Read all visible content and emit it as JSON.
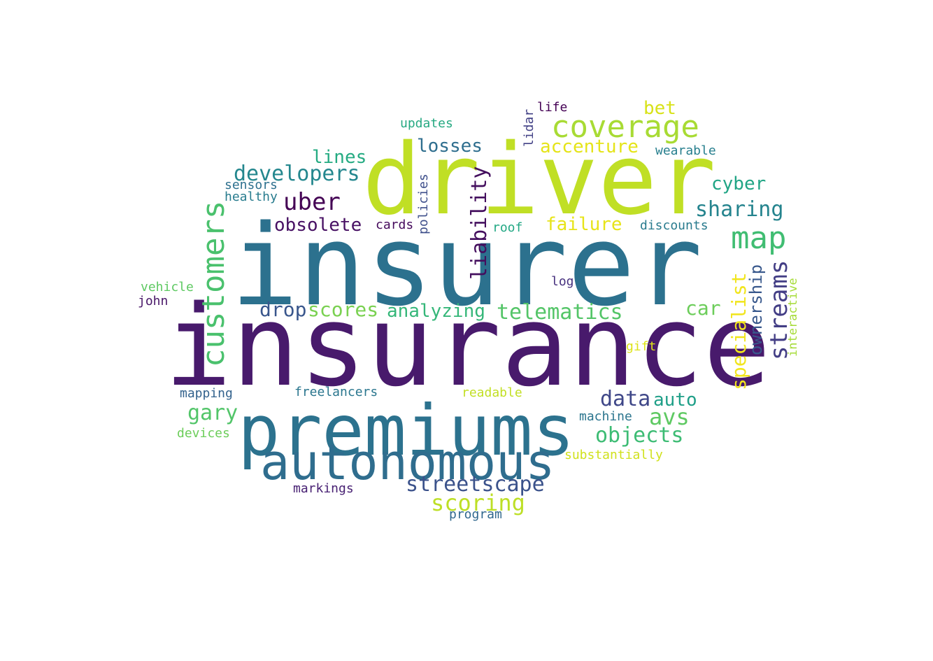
{
  "words": [
    {
      "text": "insurance",
      "color": "#481a6c"
    },
    {
      "text": "insurer",
      "color": "#2c718e"
    },
    {
      "text": "driver",
      "color": "#c0df25"
    },
    {
      "text": "premiums",
      "color": "#2c728e"
    },
    {
      "text": "autonomous",
      "color": "#2f6d8e"
    },
    {
      "text": "customers",
      "color": "#4ac16d"
    },
    {
      "text": "coverage",
      "color": "#a8db34"
    },
    {
      "text": "map",
      "color": "#40bd72"
    },
    {
      "text": "streams",
      "color": "#433e85"
    },
    {
      "text": "developers",
      "color": "#24878e"
    },
    {
      "text": "uber",
      "color": "#440154"
    },
    {
      "text": "obsolete",
      "color": "#471063"
    },
    {
      "text": "liability",
      "color": "#440f5e"
    },
    {
      "text": "losses",
      "color": "#2e6e8e"
    },
    {
      "text": "lines",
      "color": "#25ab82"
    },
    {
      "text": "sharing",
      "color": "#25848e"
    },
    {
      "text": "cyber",
      "color": "#21a585"
    },
    {
      "text": "specialist",
      "color": "#f1e51d"
    },
    {
      "text": "ownership",
      "color": "#38588c"
    },
    {
      "text": "telematics",
      "color": "#54c568"
    },
    {
      "text": "scores",
      "color": "#7ad151"
    },
    {
      "text": "analyzing",
      "color": "#35b779"
    },
    {
      "text": "drop",
      "color": "#39568c"
    },
    {
      "text": "car",
      "color": "#6ccd5a"
    },
    {
      "text": "failure",
      "color": "#e7e419"
    },
    {
      "text": "accenture",
      "color": "#e5e419"
    },
    {
      "text": "bet",
      "color": "#d8e219"
    },
    {
      "text": "data",
      "color": "#3f4788"
    },
    {
      "text": "auto",
      "color": "#1f9f88"
    },
    {
      "text": "avs",
      "color": "#5ec962"
    },
    {
      "text": "objects",
      "color": "#3dbc74"
    },
    {
      "text": "gary",
      "color": "#52c569"
    },
    {
      "text": "streetscape",
      "color": "#3b528b"
    },
    {
      "text": "scoring",
      "color": "#bddf26"
    },
    {
      "text": "policies",
      "color": "#3d4e8a"
    },
    {
      "text": "cards",
      "color": "#450a5c"
    },
    {
      "text": "roof",
      "color": "#22a884"
    },
    {
      "text": "discounts",
      "color": "#297b8e"
    },
    {
      "text": "wearable",
      "color": "#277f8e"
    },
    {
      "text": "lidar",
      "color": "#424186"
    },
    {
      "text": "life",
      "color": "#440154"
    },
    {
      "text": "updates",
      "color": "#26a982"
    },
    {
      "text": "sensors",
      "color": "#2d708e"
    },
    {
      "text": "healthy",
      "color": "#287c8e"
    },
    {
      "text": "vehicle",
      "color": "#5ec962"
    },
    {
      "text": "john",
      "color": "#481668"
    },
    {
      "text": "log",
      "color": "#46307e"
    },
    {
      "text": "interactive",
      "color": "#a5db36"
    },
    {
      "text": "gift",
      "color": "#dde318"
    },
    {
      "text": "mapping",
      "color": "#33628d"
    },
    {
      "text": "freelancers",
      "color": "#2a768e"
    },
    {
      "text": "readable",
      "color": "#c2df23"
    },
    {
      "text": "machine",
      "color": "#2b758e"
    },
    {
      "text": "substantially",
      "color": "#d0e11c"
    },
    {
      "text": "devices",
      "color": "#6ccd5a"
    },
    {
      "text": "markings",
      "color": "#482173"
    },
    {
      "text": "program",
      "color": "#31688e"
    }
  ]
}
